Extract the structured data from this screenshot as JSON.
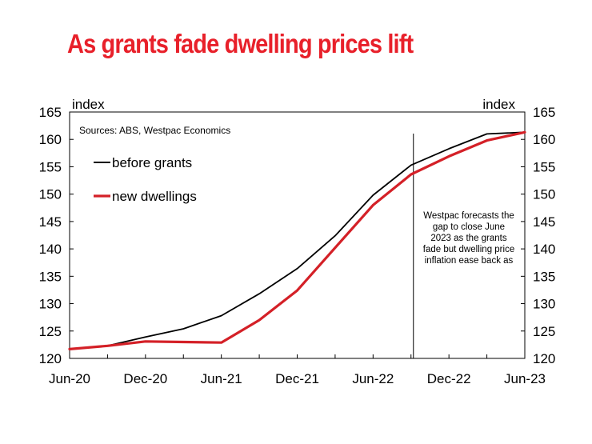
{
  "title": "As grants fade dwelling prices lift",
  "source": "Sources: ABS, Westpac Economics",
  "annotation": [
    "Westpac forecasts the",
    "gap to close June",
    "2023 as the grants",
    "fade but dwelling price",
    "inflation ease back as"
  ],
  "colors": {
    "title": "#e8202a",
    "before_grants": "#000000",
    "new_dwellings": "#d42027"
  },
  "chart_data": {
    "type": "line",
    "x": [
      "Jun-20",
      "Sep-20",
      "Dec-20",
      "Mar-21",
      "Jun-21",
      "Sep-21",
      "Dec-21",
      "Mar-22",
      "Jun-22",
      "Sep-22",
      "Dec-22",
      "Mar-23",
      "Jun-23"
    ],
    "xticks": [
      "Jun-20",
      "Dec-20",
      "Jun-21",
      "Dec-21",
      "Jun-22",
      "Dec-22",
      "Jun-23"
    ],
    "ylim": [
      120,
      165
    ],
    "yticks": [
      120,
      125,
      130,
      135,
      140,
      145,
      150,
      155,
      160,
      165
    ],
    "ylabel_left": "index",
    "ylabel_right": "index",
    "forecast_marker": "Sep-22",
    "legend_position": "top-left",
    "grid": false,
    "series": [
      {
        "name": "before grants",
        "values": [
          121.7,
          122.3,
          123.9,
          125.4,
          127.8,
          131.8,
          136.4,
          142.4,
          149.8,
          155.3,
          158.3,
          161.0,
          161.3
        ]
      },
      {
        "name": "new dwellings",
        "values": [
          121.7,
          122.3,
          123.1,
          123.0,
          122.9,
          127.0,
          132.4,
          140.2,
          148.0,
          153.6,
          156.9,
          159.8,
          161.3
        ]
      }
    ]
  }
}
